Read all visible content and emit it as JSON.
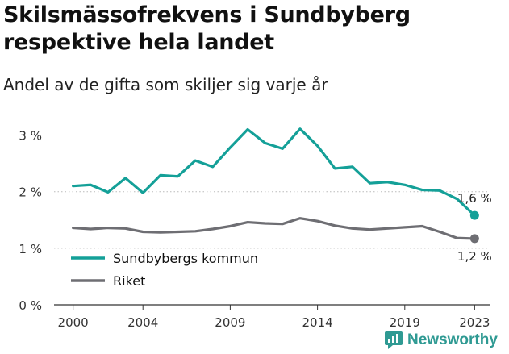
{
  "title": "Skilsmässofrekvens i Sundbyberg respektive hela landet",
  "subtitle": "Andel av de gifta som skiljer sig varje år",
  "brand": "Newsworthy",
  "chart_data": {
    "type": "line",
    "x": [
      2000,
      2001,
      2002,
      2003,
      2004,
      2005,
      2006,
      2007,
      2008,
      2009,
      2010,
      2011,
      2012,
      2013,
      2014,
      2015,
      2016,
      2017,
      2018,
      2019,
      2020,
      2021,
      2022,
      2023
    ],
    "x_tick_labels": [
      "2000",
      "2004",
      "2009",
      "2014",
      "2019",
      "2023"
    ],
    "x_tick_values": [
      2000,
      2004,
      2009,
      2014,
      2019,
      2023
    ],
    "y_tick_labels": [
      "0 %",
      "1 %",
      "2 %",
      "3 %"
    ],
    "y_tick_values": [
      0,
      1,
      2,
      3
    ],
    "ylim": [
      0,
      3.25
    ],
    "xlim": [
      1999.0,
      2024.0
    ],
    "grid": "horizontal dotted",
    "legend_position": "bottom-left",
    "series": [
      {
        "name": "Sundbybergs kommun",
        "color": "#14a098",
        "values": [
          2.1,
          2.12,
          1.99,
          2.24,
          1.98,
          2.29,
          2.27,
          2.55,
          2.44,
          2.78,
          3.1,
          2.86,
          2.76,
          3.11,
          2.81,
          2.41,
          2.44,
          2.15,
          2.17,
          2.12,
          2.03,
          2.02,
          1.87,
          1.58
        ],
        "end_label": "1,6 %"
      },
      {
        "name": "Riket",
        "color": "#6e6e73",
        "values": [
          1.36,
          1.34,
          1.36,
          1.35,
          1.29,
          1.28,
          1.29,
          1.3,
          1.34,
          1.39,
          1.46,
          1.44,
          1.43,
          1.53,
          1.48,
          1.4,
          1.35,
          1.33,
          1.35,
          1.37,
          1.39,
          1.29,
          1.18,
          1.17
        ],
        "end_label": "1,2 %"
      }
    ]
  }
}
